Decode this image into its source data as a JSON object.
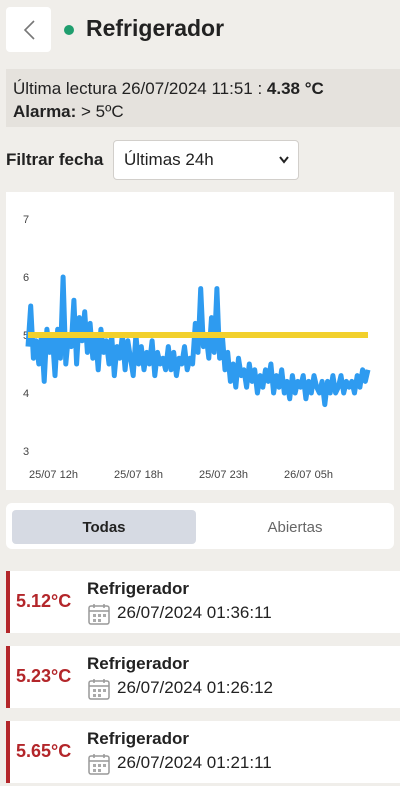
{
  "header": {
    "title": "Refrigerador",
    "status_color": "#1f9e6e"
  },
  "reading": {
    "prefix": "Última lectura 26/07/2024 11:51 : ",
    "value": "4.38 °C",
    "alarm_label": "Alarma:",
    "alarm_value": " > 5ºC"
  },
  "filter": {
    "label": "Filtrar fecha",
    "selected": "Últimas 24h"
  },
  "chart_data": {
    "type": "line",
    "yticks": [
      "7",
      "6",
      "5",
      "4",
      "3"
    ],
    "xticks": [
      "25/07 12h",
      "25/07 18h",
      "25/07 23h",
      "26/07 05h"
    ],
    "ylim": [
      3,
      7
    ],
    "threshold": 5,
    "series": [
      {
        "color": "#2e9bf0",
        "y": [
          4.8,
          5.5,
          4.6,
          4.9,
          4.5,
          5.0,
          4.2,
          5.1,
          4.7,
          5.0,
          4.3,
          5.1,
          4.6,
          6.0,
          4.5,
          5.0,
          4.8,
          5.6,
          4.5,
          5.3,
          4.9,
          5.4,
          4.7,
          5.2,
          4.6,
          5.0,
          4.4,
          5.1,
          4.7,
          4.9,
          4.5,
          5.0,
          4.3,
          4.8,
          4.6,
          5.0,
          4.4,
          4.9,
          4.6,
          4.3,
          5.0,
          4.5,
          4.8,
          4.4,
          4.7,
          4.5,
          4.9,
          4.3,
          4.7,
          4.5,
          4.6,
          4.4,
          4.8,
          4.4,
          4.7,
          4.3,
          4.6,
          4.5,
          4.8,
          4.4,
          4.6,
          4.5,
          5.2,
          4.7,
          5.8,
          4.8,
          5.0,
          4.6,
          5.3,
          4.7,
          5.8,
          4.6,
          5.0,
          4.4,
          4.7,
          4.2,
          4.5,
          4.1,
          4.6,
          4.3,
          4.4,
          4.1,
          4.5,
          4.2,
          4.4,
          4.0,
          4.3,
          4.1,
          4.4,
          4.2,
          4.5,
          4.0,
          4.3,
          4.1,
          4.4,
          4.0,
          4.2,
          3.9,
          4.3,
          4.0,
          4.2,
          4.1,
          4.3,
          3.9,
          4.2,
          4.0,
          4.3,
          4.1,
          4.0,
          4.2,
          3.8,
          4.2,
          4.0,
          4.3,
          4.0,
          4.1,
          4.3,
          4.0,
          4.2,
          4.1,
          4.2,
          4.0,
          4.3,
          4.1,
          4.4,
          4.2,
          4.4
        ]
      }
    ]
  },
  "tabs": {
    "all": "Todas",
    "open": "Abiertas"
  },
  "alarms": [
    {
      "temp": "5.12°C",
      "name": "Refrigerador",
      "date": "26/07/2024 01:36:11"
    },
    {
      "temp": "5.23°C",
      "name": "Refrigerador",
      "date": "26/07/2024 01:26:12"
    },
    {
      "temp": "5.65°C",
      "name": "Refrigerador",
      "date": "26/07/2024 01:21:11"
    }
  ]
}
